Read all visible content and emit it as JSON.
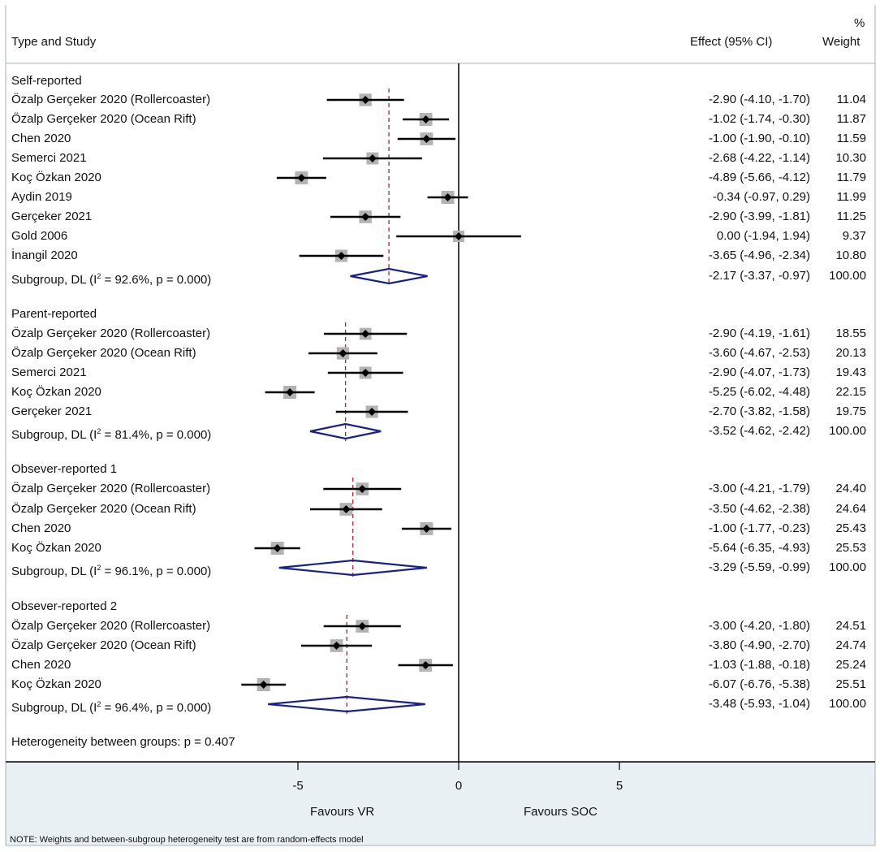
{
  "header": {
    "column_study": "Type and Study",
    "column_effect": "Effect (95% CI)",
    "column_weight_line1": "%",
    "column_weight_line2": "Weight"
  },
  "chart_data": {
    "type": "forest",
    "x_axis": {
      "ticks": [
        -5,
        0,
        5
      ],
      "tick_labels": [
        "-5",
        "0",
        "5"
      ],
      "null_line": 0
    },
    "favours_left": "Favours VR",
    "favours_right": "Favours SOC",
    "heterogeneity_between_groups": "Heterogeneity between groups: p = 0.407",
    "note": "NOTE: Weights and between-subgroup heterogeneity test are from random-effects model",
    "groups": [
      {
        "title": "Self-reported",
        "studies": [
          {
            "name": "Özalp Gerçeker 2020 (Rollercoaster)",
            "effect": -2.9,
            "lo": -4.1,
            "hi": -1.7,
            "ci_text": "-2.90 (-4.10, -1.70)",
            "weight": 11.04,
            "weight_text": "11.04"
          },
          {
            "name": "Özalp Gerçeker 2020 (Ocean Rift)",
            "effect": -1.02,
            "lo": -1.74,
            "hi": -0.3,
            "ci_text": "-1.02 (-1.74, -0.30)",
            "weight": 11.87,
            "weight_text": "11.87"
          },
          {
            "name": "Chen 2020",
            "effect": -1.0,
            "lo": -1.9,
            "hi": -0.1,
            "ci_text": "-1.00 (-1.90, -0.10)",
            "weight": 11.59,
            "weight_text": "11.59"
          },
          {
            "name": "Semerci 2021",
            "effect": -2.68,
            "lo": -4.22,
            "hi": -1.14,
            "ci_text": "-2.68 (-4.22, -1.14)",
            "weight": 10.3,
            "weight_text": "10.30"
          },
          {
            "name": "Koç Özkan 2020",
            "effect": -4.89,
            "lo": -5.66,
            "hi": -4.12,
            "ci_text": "-4.89 (-5.66, -4.12)",
            "weight": 11.79,
            "weight_text": "11.79"
          },
          {
            "name": "Aydin 2019",
            "effect": -0.34,
            "lo": -0.97,
            "hi": 0.29,
            "ci_text": "-0.34 (-0.97, 0.29)",
            "weight": 11.99,
            "weight_text": "11.99"
          },
          {
            "name": "Gerçeker 2021",
            "effect": -2.9,
            "lo": -3.99,
            "hi": -1.81,
            "ci_text": "-2.90 (-3.99, -1.81)",
            "weight": 11.25,
            "weight_text": "11.25"
          },
          {
            "name": "Gold 2006",
            "effect": 0.0,
            "lo": -1.94,
            "hi": 1.94,
            "ci_text": "0.00 (-1.94, 1.94)",
            "weight": 9.37,
            "weight_text": "9.37"
          },
          {
            "name": "İnangil 2020",
            "effect": -3.65,
            "lo": -4.96,
            "hi": -2.34,
            "ci_text": "-3.65 (-4.96, -2.34)",
            "weight": 10.8,
            "weight_text": "10.80"
          }
        ],
        "subgroup": {
          "label_pre": "Subgroup, DL (I",
          "label_sup": "2",
          "label_post": " = 92.6%, p = 0.000)",
          "effect": -2.17,
          "lo": -3.37,
          "hi": -0.97,
          "ci_text": "-2.17 (-3.37, -0.97)",
          "weight_text": "100.00"
        }
      },
      {
        "title": "Parent-reported",
        "studies": [
          {
            "name": "Özalp Gerçeker 2020 (Rollercoaster)",
            "effect": -2.9,
            "lo": -4.19,
            "hi": -1.61,
            "ci_text": "-2.90 (-4.19, -1.61)",
            "weight": 18.55,
            "weight_text": "18.55"
          },
          {
            "name": "Özalp Gerçeker 2020 (Ocean Rift)",
            "effect": -3.6,
            "lo": -4.67,
            "hi": -2.53,
            "ci_text": "-3.60 (-4.67, -2.53)",
            "weight": 20.13,
            "weight_text": "20.13"
          },
          {
            "name": "Semerci 2021",
            "effect": -2.9,
            "lo": -4.07,
            "hi": -1.73,
            "ci_text": "-2.90 (-4.07, -1.73)",
            "weight": 19.43,
            "weight_text": "19.43"
          },
          {
            "name": "Koç Özkan 2020",
            "effect": -5.25,
            "lo": -6.02,
            "hi": -4.48,
            "ci_text": "-5.25 (-6.02, -4.48)",
            "weight": 22.15,
            "weight_text": "22.15"
          },
          {
            "name": "Gerçeker 2021",
            "effect": -2.7,
            "lo": -3.82,
            "hi": -1.58,
            "ci_text": "-2.70 (-3.82, -1.58)",
            "weight": 19.75,
            "weight_text": "19.75"
          }
        ],
        "subgroup": {
          "label_pre": "Subgroup, DL (I",
          "label_sup": "2",
          "label_post": " = 81.4%, p = 0.000)",
          "effect": -3.52,
          "lo": -4.62,
          "hi": -2.42,
          "ci_text": "-3.52 (-4.62, -2.42)",
          "weight_text": "100.00"
        }
      },
      {
        "title": "Obsever-reported 1",
        "studies": [
          {
            "name": "Özalp Gerçeker 2020 (Rollercoaster)",
            "effect": -3.0,
            "lo": -4.21,
            "hi": -1.79,
            "ci_text": "-3.00 (-4.21, -1.79)",
            "weight": 24.4,
            "weight_text": "24.40"
          },
          {
            "name": "Özalp Gerçeker 2020 (Ocean Rift)",
            "effect": -3.5,
            "lo": -4.62,
            "hi": -2.38,
            "ci_text": "-3.50 (-4.62, -2.38)",
            "weight": 24.64,
            "weight_text": "24.64"
          },
          {
            "name": "Chen 2020",
            "effect": -1.0,
            "lo": -1.77,
            "hi": -0.23,
            "ci_text": "-1.00 (-1.77, -0.23)",
            "weight": 25.43,
            "weight_text": "25.43"
          },
          {
            "name": "Koç Özkan 2020",
            "effect": -5.64,
            "lo": -6.35,
            "hi": -4.93,
            "ci_text": "-5.64 (-6.35, -4.93)",
            "weight": 25.53,
            "weight_text": "25.53"
          }
        ],
        "subgroup": {
          "label_pre": "Subgroup, DL (I",
          "label_sup": "2",
          "label_post": " = 96.1%, p = 0.000)",
          "effect": -3.29,
          "lo": -5.59,
          "hi": -0.99,
          "ci_text": "-3.29 (-5.59, -0.99)",
          "weight_text": "100.00"
        }
      },
      {
        "title": "Obsever-reported 2",
        "studies": [
          {
            "name": "Özalp Gerçeker 2020 (Rollercoaster)",
            "effect": -3.0,
            "lo": -4.2,
            "hi": -1.8,
            "ci_text": "-3.00 (-4.20, -1.80)",
            "weight": 24.51,
            "weight_text": "24.51"
          },
          {
            "name": "Özalp Gerçeker 2020 (Ocean Rift)",
            "effect": -3.8,
            "lo": -4.9,
            "hi": -2.7,
            "ci_text": "-3.80 (-4.90, -2.70)",
            "weight": 24.74,
            "weight_text": "24.74"
          },
          {
            "name": "Chen 2020",
            "effect": -1.03,
            "lo": -1.88,
            "hi": -0.18,
            "ci_text": "-1.03 (-1.88, -0.18)",
            "weight": 25.24,
            "weight_text": "25.24"
          },
          {
            "name": "Koç Özkan 2020",
            "effect": -6.07,
            "lo": -6.76,
            "hi": -5.38,
            "ci_text": "-6.07 (-6.76, -5.38)",
            "weight": 25.51,
            "weight_text": "25.51"
          }
        ],
        "subgroup": {
          "label_pre": "Subgroup, DL (I",
          "label_sup": "2",
          "label_post": " = 96.4%, p = 0.000)",
          "effect": -3.48,
          "lo": -5.93,
          "hi": -1.04,
          "ci_text": "-3.48 (-5.93, -1.04)",
          "weight_text": "100.00"
        }
      }
    ]
  },
  "colors": {
    "axis_band": "#e8f0f3",
    "frame": "#a6b2b8",
    "ci_line": "#000000",
    "marker": "#000000",
    "weight_box": "#b3b3b3",
    "diamond": "#1a237e",
    "pooled_line": "#b22222",
    "null_line": "#000000"
  }
}
